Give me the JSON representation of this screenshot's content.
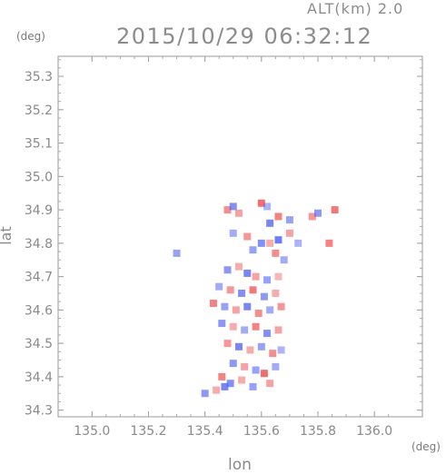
{
  "header": {
    "alt_label": "ALT(km) 2.0",
    "timestamp": "2015/10/29 06:32:12"
  },
  "chart_data": {
    "type": "heatmap",
    "title": "2015/10/29 06:32:12",
    "subtitle": "ALT(km) 2.0",
    "xlabel": "lon",
    "ylabel": "lat",
    "x_unit": "(deg)",
    "y_unit": "(deg)",
    "xlim": [
      134.88,
      136.17
    ],
    "ylim": [
      34.28,
      35.36
    ],
    "x_ticks": [
      135.0,
      135.2,
      135.4,
      135.6,
      135.8,
      136.0
    ],
    "x_tick_labels": [
      "135.0",
      "135.2",
      "135.4",
      "135.6",
      "135.8",
      "136.0"
    ],
    "y_ticks": [
      34.3,
      34.4,
      34.5,
      34.6,
      34.7,
      34.8,
      34.9,
      35.0,
      35.1,
      35.2,
      35.3
    ],
    "y_tick_labels": [
      "34.3",
      "34.4",
      "34.5",
      "34.6",
      "34.7",
      "34.8",
      "34.9",
      "35.0",
      "35.1",
      "35.2",
      "35.3"
    ],
    "grid": false,
    "colors": {
      "positive": "#ee5555",
      "negative": "#5566ee",
      "frame": "#999999"
    },
    "cells": [
      {
        "lon": 135.3,
        "lat": 34.77,
        "v": -0.6
      },
      {
        "lon": 135.48,
        "lat": 34.9,
        "v": 0.7
      },
      {
        "lon": 135.5,
        "lat": 34.91,
        "v": -0.8
      },
      {
        "lon": 135.52,
        "lat": 34.89,
        "v": 0.5
      },
      {
        "lon": 135.6,
        "lat": 34.92,
        "v": 1.0
      },
      {
        "lon": 135.62,
        "lat": 34.91,
        "v": -0.4
      },
      {
        "lon": 135.63,
        "lat": 34.86,
        "v": -0.9
      },
      {
        "lon": 135.66,
        "lat": 34.88,
        "v": 0.8
      },
      {
        "lon": 135.7,
        "lat": 34.87,
        "v": -0.6
      },
      {
        "lon": 135.78,
        "lat": 34.88,
        "v": 0.6
      },
      {
        "lon": 135.8,
        "lat": 34.89,
        "v": -0.7
      },
      {
        "lon": 135.86,
        "lat": 34.9,
        "v": 0.9
      },
      {
        "lon": 135.5,
        "lat": 34.83,
        "v": -0.5
      },
      {
        "lon": 135.55,
        "lat": 34.82,
        "v": 0.6
      },
      {
        "lon": 135.6,
        "lat": 34.8,
        "v": -0.8
      },
      {
        "lon": 135.63,
        "lat": 34.8,
        "v": 0.4
      },
      {
        "lon": 135.66,
        "lat": 34.81,
        "v": -1.0
      },
      {
        "lon": 135.7,
        "lat": 34.83,
        "v": 0.5
      },
      {
        "lon": 135.73,
        "lat": 34.8,
        "v": -0.4
      },
      {
        "lon": 135.84,
        "lat": 34.8,
        "v": 0.8
      },
      {
        "lon": 135.57,
        "lat": 34.78,
        "v": -0.6
      },
      {
        "lon": 135.65,
        "lat": 34.77,
        "v": 0.7
      },
      {
        "lon": 135.68,
        "lat": 34.75,
        "v": -0.5
      },
      {
        "lon": 135.48,
        "lat": 34.72,
        "v": -0.7
      },
      {
        "lon": 135.52,
        "lat": 34.73,
        "v": 0.4
      },
      {
        "lon": 135.55,
        "lat": 34.71,
        "v": -0.9
      },
      {
        "lon": 135.58,
        "lat": 34.7,
        "v": 0.5
      },
      {
        "lon": 135.62,
        "lat": 34.69,
        "v": -0.6
      },
      {
        "lon": 135.66,
        "lat": 34.7,
        "v": 0.3
      },
      {
        "lon": 135.45,
        "lat": 34.67,
        "v": -0.5
      },
      {
        "lon": 135.49,
        "lat": 34.66,
        "v": 0.6
      },
      {
        "lon": 135.53,
        "lat": 34.65,
        "v": -0.8
      },
      {
        "lon": 135.57,
        "lat": 34.66,
        "v": 0.9
      },
      {
        "lon": 135.61,
        "lat": 34.64,
        "v": -0.7
      },
      {
        "lon": 135.65,
        "lat": 34.65,
        "v": 0.4
      },
      {
        "lon": 135.43,
        "lat": 34.62,
        "v": 0.8
      },
      {
        "lon": 135.47,
        "lat": 34.61,
        "v": -0.6
      },
      {
        "lon": 135.51,
        "lat": 34.6,
        "v": 0.5
      },
      {
        "lon": 135.55,
        "lat": 34.61,
        "v": -0.9
      },
      {
        "lon": 135.59,
        "lat": 34.59,
        "v": 0.7
      },
      {
        "lon": 135.63,
        "lat": 34.6,
        "v": -0.5
      },
      {
        "lon": 135.67,
        "lat": 34.61,
        "v": 0.6
      },
      {
        "lon": 135.46,
        "lat": 34.56,
        "v": -0.7
      },
      {
        "lon": 135.5,
        "lat": 34.55,
        "v": 0.4
      },
      {
        "lon": 135.54,
        "lat": 34.54,
        "v": -0.5
      },
      {
        "lon": 135.58,
        "lat": 34.55,
        "v": 0.8
      },
      {
        "lon": 135.62,
        "lat": 34.53,
        "v": -0.8
      },
      {
        "lon": 135.66,
        "lat": 34.54,
        "v": 0.5
      },
      {
        "lon": 135.48,
        "lat": 34.5,
        "v": 0.6
      },
      {
        "lon": 135.52,
        "lat": 34.49,
        "v": -0.9
      },
      {
        "lon": 135.56,
        "lat": 34.48,
        "v": 0.4
      },
      {
        "lon": 135.6,
        "lat": 34.49,
        "v": -0.6
      },
      {
        "lon": 135.64,
        "lat": 34.47,
        "v": 0.7
      },
      {
        "lon": 135.67,
        "lat": 34.48,
        "v": -0.4
      },
      {
        "lon": 135.5,
        "lat": 34.44,
        "v": -0.7
      },
      {
        "lon": 135.54,
        "lat": 34.43,
        "v": 0.5
      },
      {
        "lon": 135.58,
        "lat": 34.42,
        "v": -0.6
      },
      {
        "lon": 135.61,
        "lat": 34.41,
        "v": 1.0
      },
      {
        "lon": 135.65,
        "lat": 34.43,
        "v": -0.5
      },
      {
        "lon": 135.46,
        "lat": 34.4,
        "v": 0.8
      },
      {
        "lon": 135.49,
        "lat": 34.38,
        "v": -0.8
      },
      {
        "lon": 135.53,
        "lat": 34.39,
        "v": 0.4
      },
      {
        "lon": 135.57,
        "lat": 34.37,
        "v": -0.6
      },
      {
        "lon": 135.63,
        "lat": 34.38,
        "v": 0.5
      },
      {
        "lon": 135.4,
        "lat": 34.35,
        "v": -0.7
      },
      {
        "lon": 135.44,
        "lat": 34.36,
        "v": 0.4
      },
      {
        "lon": 135.47,
        "lat": 34.37,
        "v": -0.9
      }
    ]
  }
}
